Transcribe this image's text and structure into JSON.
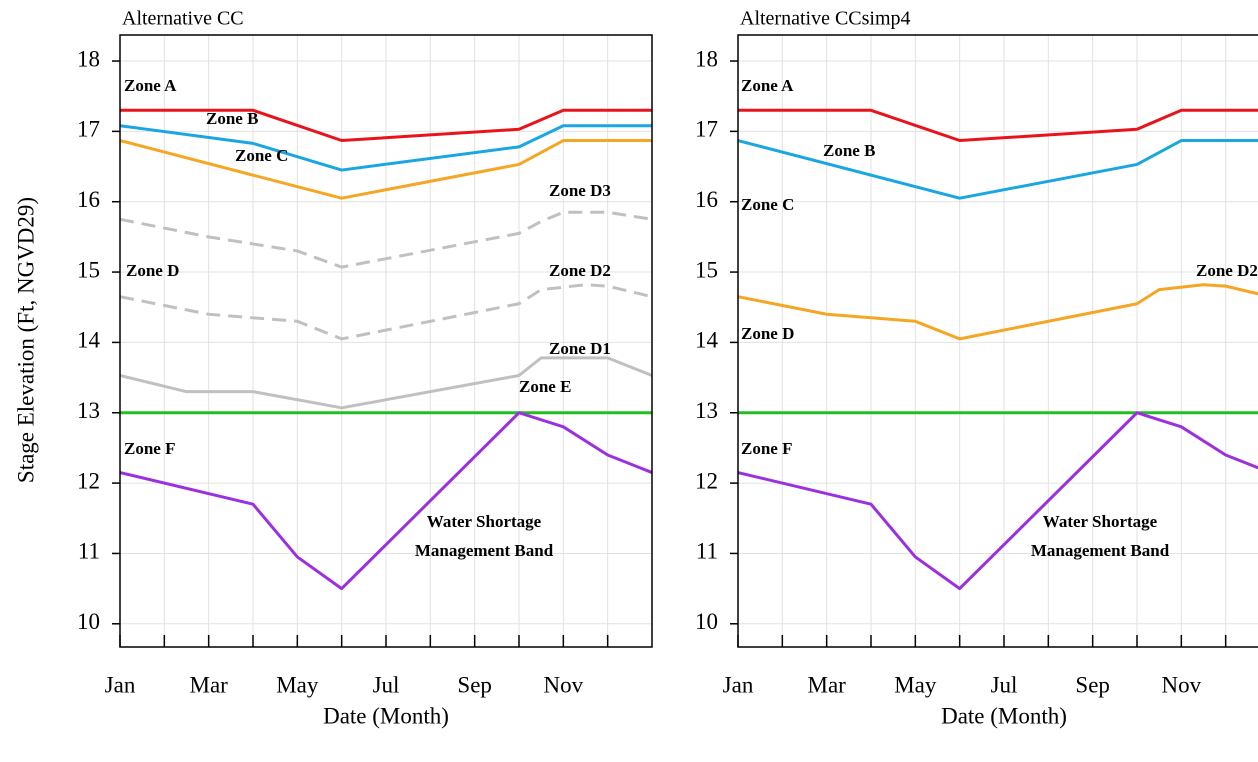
{
  "chart_data": [
    {
      "type": "line",
      "title": "Alternative CC",
      "ylabel": "Stage Elevation (Ft, NGVD29)",
      "xlabel": "Date (Month)",
      "xlim": [
        0,
        12
      ],
      "ylim": [
        9.67,
        18.37
      ],
      "xticks": [
        {
          "value": 0,
          "label": "Jan"
        },
        {
          "value": 2,
          "label": "Mar"
        },
        {
          "value": 4,
          "label": "May"
        },
        {
          "value": 6,
          "label": "Jul"
        },
        {
          "value": 8,
          "label": "Sep"
        },
        {
          "value": 10,
          "label": "Nov"
        }
      ],
      "xminorticks": [
        1,
        3,
        5,
        7,
        9,
        11
      ],
      "yticks": [
        10,
        11,
        12,
        13,
        14,
        15,
        16,
        17,
        18
      ],
      "grid": true,
      "series": [
        {
          "name": "Zone A",
          "color": "#e8141c",
          "dashed": false,
          "x": [
            0,
            3,
            5,
            9,
            10,
            12
          ],
          "values": [
            17.3,
            17.3,
            16.87,
            17.03,
            17.3,
            17.3
          ]
        },
        {
          "name": "Zone B",
          "color": "#1aa6e0",
          "dashed": false,
          "x": [
            0,
            3,
            5,
            9,
            10,
            12
          ],
          "values": [
            17.08,
            16.83,
            16.45,
            16.78,
            17.08,
            17.08
          ]
        },
        {
          "name": "Zone C",
          "color": "#f5a623",
          "dashed": false,
          "x": [
            0,
            5,
            9,
            10,
            12
          ],
          "values": [
            16.87,
            16.05,
            16.53,
            16.87,
            16.87
          ]
        },
        {
          "name": "Zone D3",
          "color": "#c0c0c0",
          "dashed": true,
          "x": [
            0,
            2,
            4,
            5,
            9,
            9.5,
            10,
            11,
            12
          ],
          "values": [
            15.75,
            15.5,
            15.3,
            15.07,
            15.55,
            15.72,
            15.85,
            15.85,
            15.75
          ]
        },
        {
          "name": "Zone D2",
          "color": "#c0c0c0",
          "dashed": true,
          "x": [
            0,
            2,
            4,
            5,
            9,
            9.5,
            10.5,
            11,
            12
          ],
          "values": [
            14.65,
            14.4,
            14.3,
            14.05,
            14.55,
            14.75,
            14.82,
            14.8,
            14.65
          ]
        },
        {
          "name": "Zone D1",
          "color": "#c0c0c0",
          "dashed": false,
          "x": [
            0,
            1.5,
            3,
            5,
            9,
            9.5,
            11,
            12
          ],
          "values": [
            13.53,
            13.3,
            13.3,
            13.07,
            13.53,
            13.78,
            13.78,
            13.53
          ]
        },
        {
          "name": "Zone E",
          "color": "#22c01e",
          "dashed": false,
          "x": [
            0,
            12
          ],
          "values": [
            13,
            13
          ]
        },
        {
          "name": "Zone F",
          "color": "#9b30e0",
          "dashed": false,
          "x": [
            0,
            3,
            4,
            5,
            9,
            10,
            11,
            12
          ],
          "values": [
            12.15,
            11.7,
            10.95,
            10.5,
            13.0,
            12.8,
            12.4,
            12.15
          ]
        }
      ],
      "annotations": [
        "Zone D"
      ],
      "annotation_color": "#c0c0c0",
      "band_label": [
        "Water Shortage",
        "Management Band"
      ],
      "band_label_color": "#1a1aff"
    },
    {
      "type": "line",
      "title": "Alternative CCsimp4",
      "xlabel": "Date (Month)",
      "xlim": [
        0,
        11.73
      ],
      "ylim": [
        9.67,
        18.37
      ],
      "xticks": [
        {
          "value": 0,
          "label": "Jan"
        },
        {
          "value": 2,
          "label": "Mar"
        },
        {
          "value": 4,
          "label": "May"
        },
        {
          "value": 6,
          "label": "Jul"
        },
        {
          "value": 8,
          "label": "Sep"
        },
        {
          "value": 10,
          "label": "Nov"
        }
      ],
      "xminorticks": [
        1,
        3,
        5,
        7,
        9,
        11
      ],
      "yticks": [
        10,
        11,
        12,
        13,
        14,
        15,
        16,
        17,
        18
      ],
      "grid": true,
      "series": [
        {
          "name": "Zone A",
          "color": "#e8141c",
          "dashed": false,
          "x": [
            0,
            3,
            5,
            9,
            10,
            12
          ],
          "values": [
            17.3,
            17.3,
            16.87,
            17.03,
            17.3,
            17.3
          ]
        },
        {
          "name": "Zone B",
          "color": "#1aa6e0",
          "dashed": false,
          "x": [
            0,
            5,
            9,
            10,
            12
          ],
          "values": [
            16.87,
            16.05,
            16.53,
            16.87,
            16.87
          ]
        },
        {
          "name": "Zone C",
          "color": "#f5a623",
          "dashed": false,
          "x": [
            0,
            2,
            4,
            5,
            9,
            9.5,
            10.5,
            11,
            12
          ],
          "values": [
            14.65,
            14.4,
            14.3,
            14.05,
            14.55,
            14.75,
            14.82,
            14.8,
            14.65
          ]
        },
        {
          "color": "#22c01e",
          "dashed": false,
          "x": [
            0,
            12
          ],
          "values": [
            13,
            13
          ]
        },
        {
          "name": "Zone F",
          "color": "#9b30e0",
          "dashed": false,
          "x": [
            0,
            3,
            4,
            5,
            9,
            10,
            11,
            12
          ],
          "values": [
            12.15,
            11.7,
            10.95,
            10.5,
            13.0,
            12.8,
            12.4,
            12.15
          ]
        }
      ],
      "annotations": [
        "Zone D2",
        "Zone D"
      ],
      "annotation_color": "#c0c0c0",
      "band_label": [
        "Water Shortage",
        "Management Band"
      ],
      "band_label_color": "#1a1aff"
    }
  ]
}
